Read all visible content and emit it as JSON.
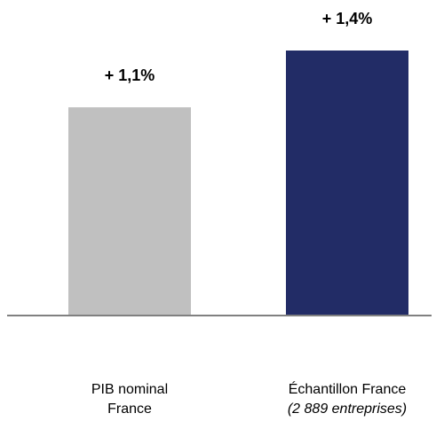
{
  "chart_data": {
    "type": "bar",
    "title": "",
    "xlabel": "",
    "ylabel": "",
    "ylim": [
      0,
      1.4
    ],
    "categories": [
      {
        "name": "PIB nominal",
        "name_line2": "France",
        "name_line2_italic": false
      },
      {
        "name": "Échantillon France",
        "name_line2": "(2 889 entreprises)",
        "name_line2_italic": true
      }
    ],
    "values": [
      1.1,
      1.4
    ],
    "value_labels": [
      "+ 1,1%",
      "+ 1,4%"
    ],
    "colors": [
      "#c0c0c0",
      "#222c66"
    ],
    "axis_color": "#808080",
    "grid": false,
    "legend": "none"
  }
}
